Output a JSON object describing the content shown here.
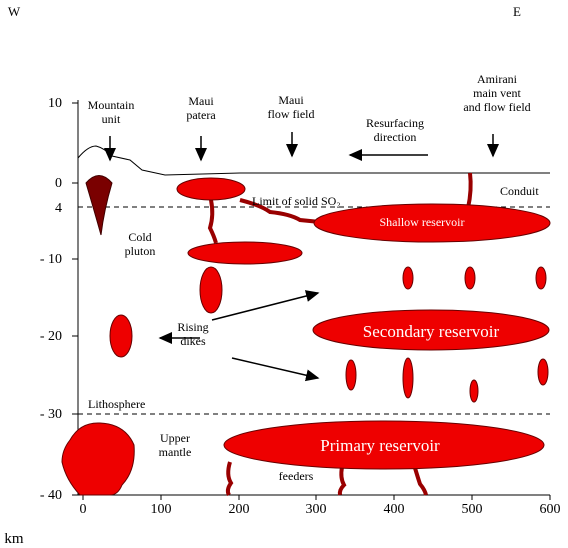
{
  "header": {
    "west": "W",
    "east": "E"
  },
  "axes": {
    "y_labels": [
      "10",
      "0",
      "4",
      "- 10",
      "- 20",
      "- 30",
      "- 40"
    ],
    "x_labels": [
      "0",
      "100",
      "200",
      "300",
      "400",
      "500",
      "600"
    ],
    "unit": "km"
  },
  "labels": {
    "mountain_unit": [
      "Mountain",
      "unit"
    ],
    "maui_patera": [
      "Maui",
      "patera"
    ],
    "maui_flow_field": [
      "Maui",
      "flow field"
    ],
    "resurfacing": [
      "Resurfacing",
      "direction"
    ],
    "amirani": [
      "Amirani",
      "main vent",
      "and flow field"
    ],
    "conduit": "Conduit",
    "limit": "Limit of solid SO₂",
    "shallow_reservoir": "Shallow reservoir",
    "cold_pluton": [
      "Cold",
      "pluton"
    ],
    "rising_dikes": [
      "Rising",
      "dikes"
    ],
    "secondary_reservoir": "Secondary reservoir",
    "lithosphere": "Lithosphere",
    "upper_mantle": [
      "Upper",
      "mantle"
    ],
    "primary_reservoir": "Primary reservoir",
    "feeders": "feeders"
  }
}
